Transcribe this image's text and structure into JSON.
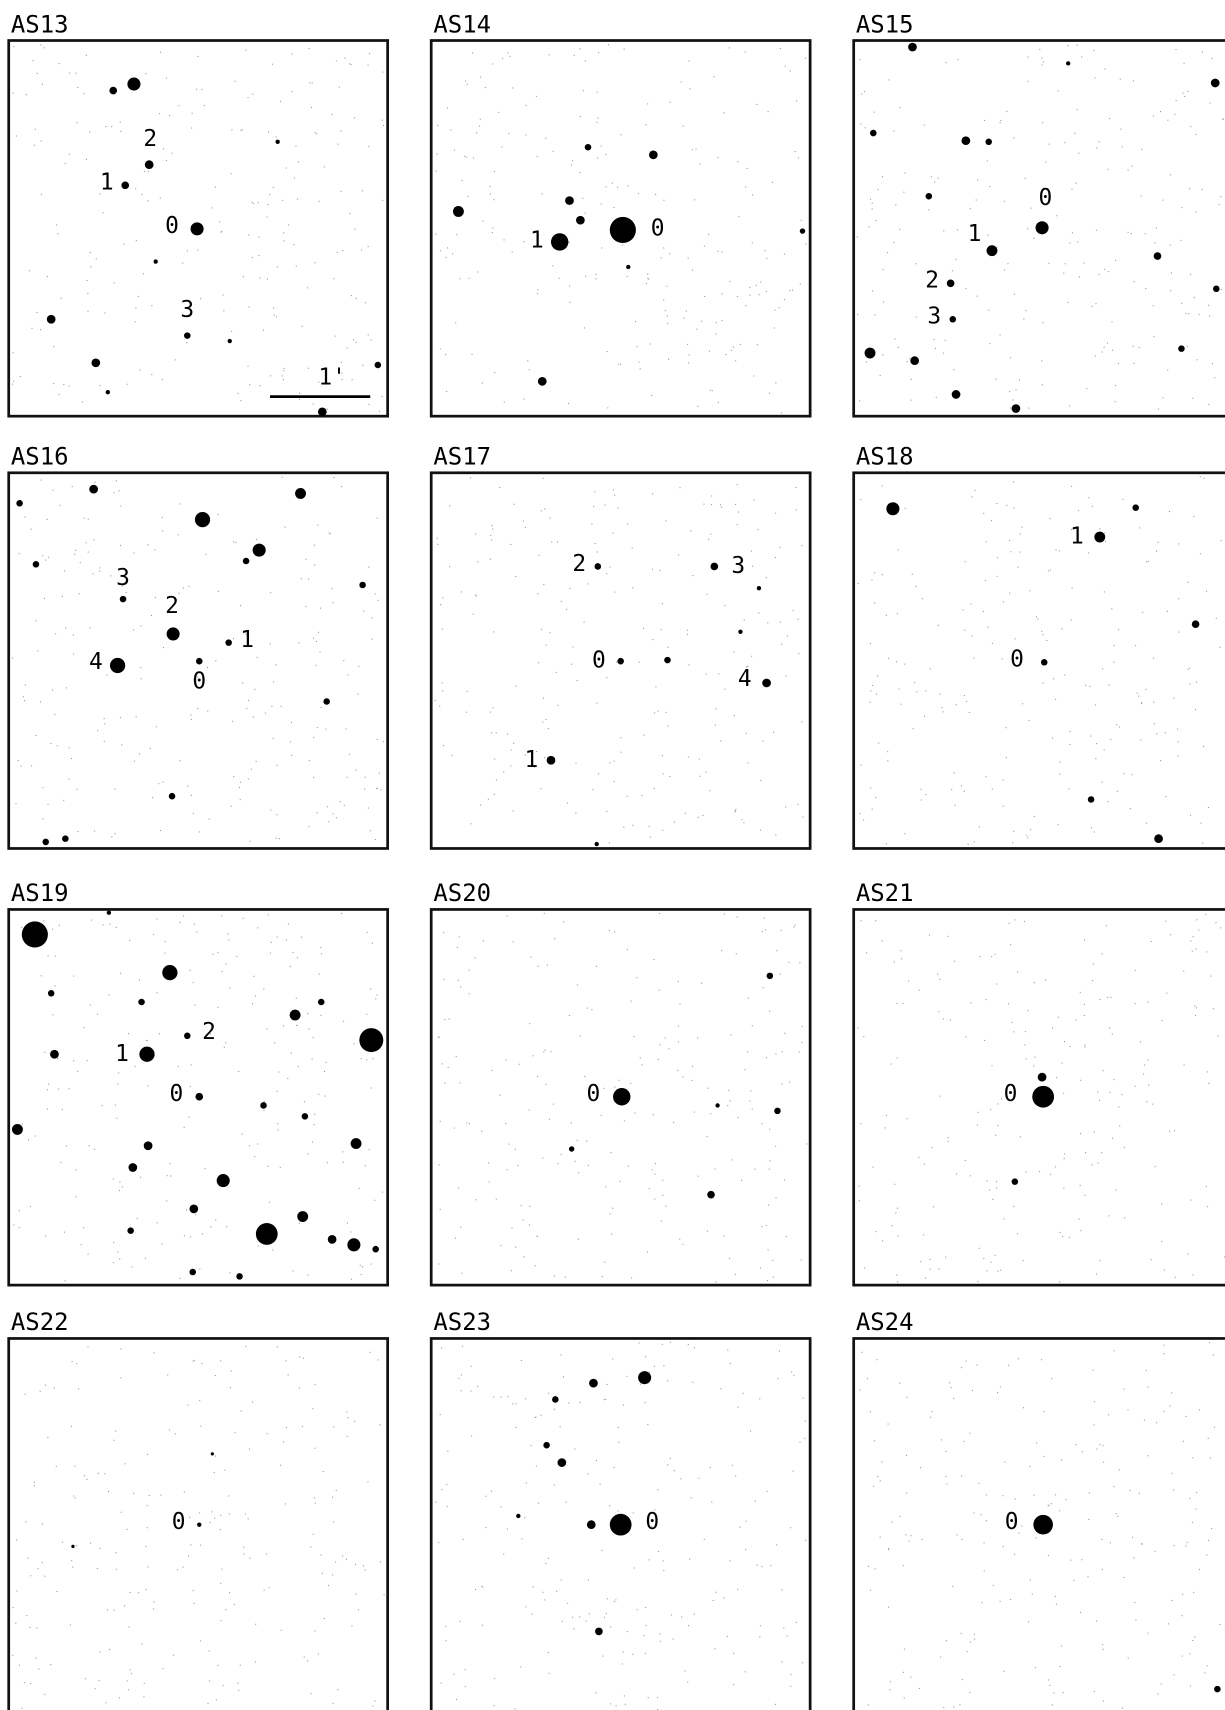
{
  "panels": [
    {
      "title": "AS13",
      "labels": [
        "0",
        "1",
        "2",
        "3"
      ]
    },
    {
      "title": "AS14",
      "labels": [
        "0",
        "1"
      ]
    },
    {
      "title": "AS15",
      "labels": [
        "0",
        "1",
        "2",
        "3"
      ]
    },
    {
      "title": "AS16",
      "labels": [
        "0",
        "1",
        "2",
        "3",
        "4"
      ]
    },
    {
      "title": "AS17",
      "labels": [
        "0",
        "1",
        "2",
        "3",
        "4"
      ]
    },
    {
      "title": "AS18",
      "labels": [
        "0",
        "1"
      ]
    },
    {
      "title": "AS19",
      "labels": [
        "0",
        "1",
        "2"
      ]
    },
    {
      "title": "AS20",
      "labels": [
        "0"
      ]
    },
    {
      "title": "AS21",
      "labels": [
        "0"
      ]
    },
    {
      "title": "AS22",
      "labels": [
        "0"
      ]
    },
    {
      "title": "AS23",
      "labels": [
        "0"
      ]
    },
    {
      "title": "AS24",
      "labels": [
        "0"
      ]
    }
  ],
  "scale_bar": "1'"
}
